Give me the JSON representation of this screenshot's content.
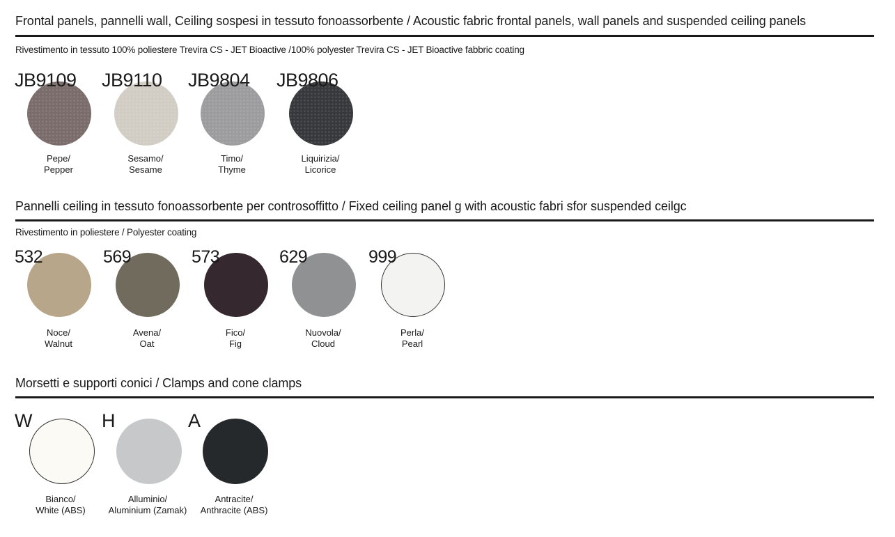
{
  "sections": [
    {
      "title": "Frontal panels, pannelli wall, Ceiling sospesi in tessuto fonoassorbente / Acoustic fabric frontal panels, wall panels and suspended ceiling panels",
      "subtitle": "Rivestimento in tessuto 100% poliestere Trevira CS - JET Bioactive /100% polyester Trevira CS - JET Bioactive fabbric coating",
      "swatches": [
        {
          "code": "JB9109",
          "line1": "Pepe/",
          "line2": "Pepper",
          "color": "#7a6c6a"
        },
        {
          "code": "JB9110",
          "line1": "Sesamo/",
          "line2": "Sesame",
          "color": "#d2cdc4"
        },
        {
          "code": "JB9804",
          "line1": "Timo/",
          "line2": "Thyme",
          "color": "#9c9c9e"
        },
        {
          "code": "JB9806",
          "line1": "Liquirizia/",
          "line2": "Licorice",
          "color": "#37383b"
        }
      ]
    },
    {
      "title": "Pannelli ceiling in tessuto fonoassorbente per controsoffitto / Fixed ceiling panel g with acoustic fabri  sfor suspended ceilgc",
      "subtitle": "Rivestimento in poliestere / Polyester coating",
      "swatches": [
        {
          "code": "532",
          "line1": "Noce/",
          "line2": "Walnut",
          "color": "#b8a68a"
        },
        {
          "code": "569",
          "line1": "Avena/",
          "line2": "Oat",
          "color": "#716b5e"
        },
        {
          "code": "573",
          "line1": "Fico/",
          "line2": "Fig",
          "color": "#35282e"
        },
        {
          "code": "629",
          "line1": "Nuovola/",
          "line2": "Cloud",
          "color": "#8f9193"
        },
        {
          "code": "999",
          "line1": "Perla/",
          "line2": "Pearl",
          "color": "#f3f3f1"
        }
      ]
    },
    {
      "title": "Morsetti e supporti conici / Clamps and cone clamps",
      "swatches": [
        {
          "code": "W",
          "line1": "Bianco/",
          "line2": "White (ABS)",
          "color": "#fbfaf4"
        },
        {
          "code": "H",
          "line1": "Alluminio/",
          "line2": "Aluminium (Zamak)",
          "color": "#c6c8ca"
        },
        {
          "code": "A",
          "line1": "Antracite/",
          "line2": "Anthracite (ABS)",
          "color": "#26292b"
        }
      ]
    }
  ]
}
